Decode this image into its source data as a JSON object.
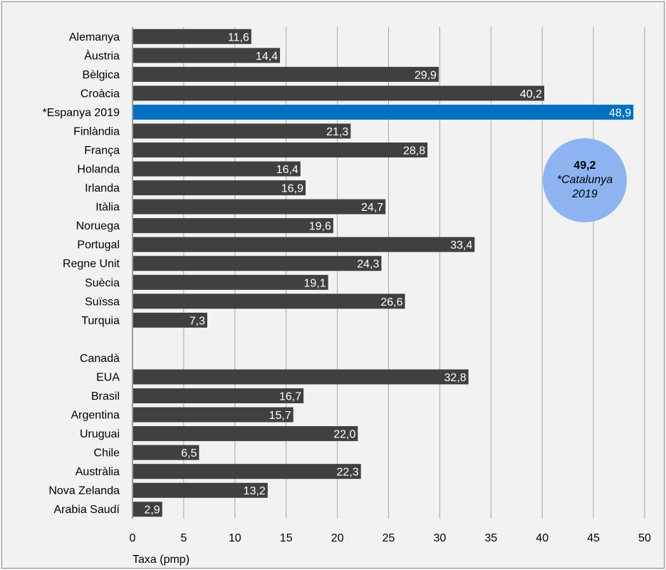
{
  "chart_data": {
    "type": "bar",
    "orientation": "horizontal",
    "categories": [
      "Alemanya",
      "Àustria",
      "Bèlgica",
      "Croàcia",
      "*Espanya 2019",
      "Finlàndia",
      "França",
      "Holanda",
      "Irlanda",
      "Itàlia",
      "Noruega",
      "Portugal",
      "Regne Unit",
      "Suècia",
      "Suïssa",
      "Turquia",
      "",
      "Canadà",
      "EUA",
      "Brasil",
      "Argentina",
      "Uruguai",
      "Chile",
      "Austràlia",
      "Nova Zelanda",
      "Arabia Saudí"
    ],
    "values": [
      11.6,
      14.4,
      29.9,
      40.2,
      48.9,
      21.3,
      28.8,
      16.4,
      16.9,
      24.7,
      19.6,
      33.4,
      24.3,
      19.1,
      26.6,
      7.3,
      null,
      null,
      32.8,
      16.7,
      15.7,
      22.0,
      6.5,
      22.3,
      13.2,
      2.9
    ],
    "value_labels": [
      "11,6",
      "14,4",
      "29,9",
      "40,2",
      "48,9",
      "21,3",
      "28,8",
      "16,4",
      "16,9",
      "24,7",
      "19,6",
      "33,4",
      "24,3",
      "19,1",
      "26,6",
      "7,3",
      "",
      "",
      "32,8",
      "16,7",
      "15,7",
      "22,0",
      "6,5",
      "22,3",
      "13,2",
      "2,9"
    ],
    "highlight_category": "*Espanya 2019",
    "xlabel": "Taxa (pmp)",
    "xlim": [
      0,
      50
    ],
    "xticks": [
      0,
      5,
      10,
      15,
      20,
      25,
      30,
      35,
      40,
      45,
      50
    ],
    "grid": "vertical",
    "legend": "none",
    "colors": {
      "bar": "#404040",
      "highlight": "#0070c0",
      "grid": "#a6a6a6",
      "callout": "#8db4f0",
      "background": "#f2f2f2"
    }
  },
  "callout": {
    "value": "49,2",
    "label": "*Catalunya 2019"
  }
}
